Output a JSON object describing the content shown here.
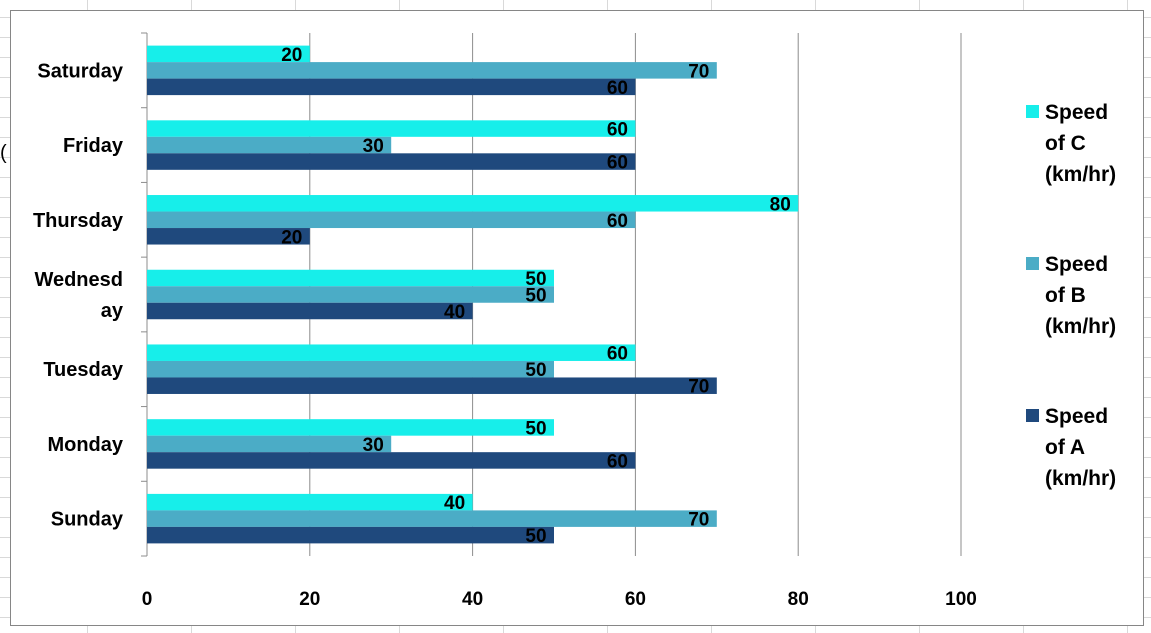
{
  "chart_data": {
    "type": "bar",
    "orientation": "horizontal",
    "categories": [
      "Sunday",
      "Monday",
      "Tuesday",
      "Wednesday",
      "Thursday",
      "Friday",
      "Saturday"
    ],
    "category_display": [
      [
        "Sunday"
      ],
      [
        "Monday"
      ],
      [
        "Tuesday"
      ],
      [
        "Wednesd",
        "ay"
      ],
      [
        "Thursday"
      ],
      [
        "Friday"
      ],
      [
        "Saturday"
      ]
    ],
    "series": [
      {
        "name": "Speed of A (km/hr)",
        "name_lines": [
          "Speed",
          "of A",
          "(km/hr)"
        ],
        "color": "#1f497d",
        "values": [
          50,
          60,
          70,
          40,
          20,
          60,
          60
        ]
      },
      {
        "name": "Speed of B (km/hr)",
        "name_lines": [
          "Speed",
          "of B",
          "(km/hr)"
        ],
        "color": "#4bacc6",
        "values": [
          70,
          30,
          50,
          50,
          60,
          30,
          70
        ]
      },
      {
        "name": "Speed of C (km/hr)",
        "name_lines": [
          "Speed",
          "of C",
          "(km/hr)"
        ],
        "color": "#17eeea",
        "values": [
          40,
          50,
          60,
          50,
          80,
          60,
          20
        ]
      }
    ],
    "xlim": [
      0,
      100
    ],
    "x_ticks": [
      0,
      20,
      40,
      60,
      80,
      100
    ],
    "grid": true,
    "data_labels": true,
    "legend_position": "right",
    "title": "",
    "xlabel": "",
    "ylabel": ""
  },
  "stray_text": "("
}
